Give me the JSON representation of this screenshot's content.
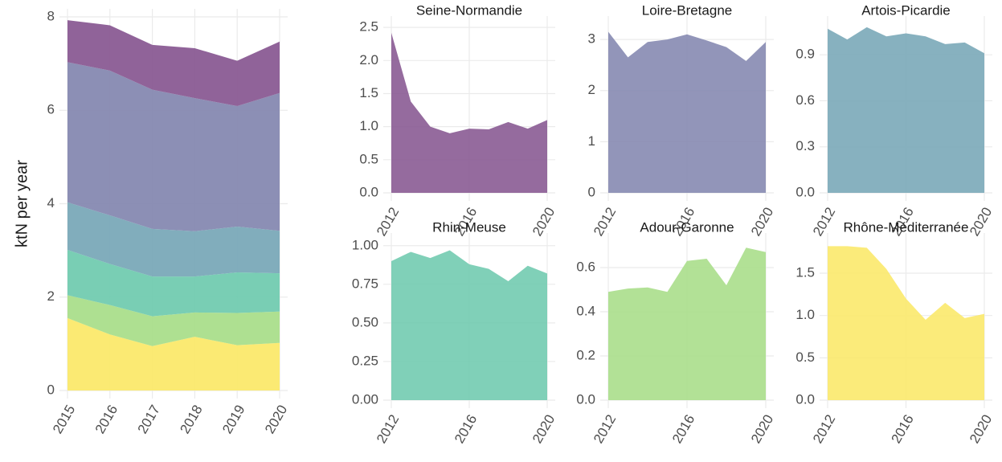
{
  "chart_data": [
    {
      "type": "stacked_area",
      "ylabel": "ktN per year",
      "x": [
        2015,
        2016,
        2017,
        2018,
        2019,
        2020
      ],
      "xlim": [
        2015,
        2020
      ],
      "xticks": [
        2015,
        2016,
        2017,
        2018,
        2019,
        2020
      ],
      "ylim": [
        0,
        8
      ],
      "yticks": [
        0,
        2,
        4,
        6,
        8
      ],
      "grid": true,
      "series": [
        {
          "color": "#fbe96c",
          "values": [
            1.55,
            1.2,
            0.95,
            1.15,
            0.97,
            1.02
          ]
        },
        {
          "color": "#aade8b",
          "values": [
            0.49,
            0.63,
            0.64,
            0.52,
            0.69,
            0.67
          ]
        },
        {
          "color": "#72cbb0",
          "values": [
            0.97,
            0.88,
            0.85,
            0.77,
            0.87,
            0.82
          ]
        },
        {
          "color": "#7aa9b8",
          "values": [
            1.02,
            1.04,
            1.02,
            0.97,
            0.98,
            0.91
          ]
        },
        {
          "color": "#8689b1",
          "values": [
            3.0,
            3.1,
            2.98,
            2.85,
            2.58,
            2.95
          ]
        },
        {
          "color": "#8a5b93",
          "values": [
            0.9,
            0.97,
            0.96,
            1.07,
            0.97,
            1.1
          ]
        }
      ]
    },
    {
      "type": "area",
      "title": "Seine-Normandie",
      "color": "#8a5b93",
      "x": [
        2012,
        2013,
        2014,
        2015,
        2016,
        2017,
        2018,
        2019,
        2020
      ],
      "values": [
        2.42,
        1.38,
        1.0,
        0.9,
        0.97,
        0.96,
        1.07,
        0.97,
        1.1
      ],
      "xlim": [
        2012,
        2020
      ],
      "xticks": [
        2012,
        2016,
        2020
      ],
      "ylim": [
        0,
        2.55
      ],
      "yticks": [
        {
          "value": 0,
          "label": "0.0"
        },
        0.5,
        {
          "value": 1,
          "label": "1.0"
        },
        1.5,
        {
          "value": 2,
          "label": "2.0"
        },
        2.5
      ],
      "grid": true
    },
    {
      "type": "area",
      "title": "Loire-Bretagne",
      "color": "#8689b1",
      "x": [
        2012,
        2013,
        2014,
        2015,
        2016,
        2017,
        2018,
        2019,
        2020
      ],
      "values": [
        3.15,
        2.65,
        2.95,
        3.0,
        3.1,
        2.98,
        2.85,
        2.58,
        2.95
      ],
      "xlim": [
        2012,
        2020
      ],
      "xticks": [
        2012,
        2016,
        2020
      ],
      "ylim": [
        0,
        3.3
      ],
      "yticks": [
        0,
        1,
        2,
        3
      ],
      "grid": true
    },
    {
      "type": "area",
      "title": "Artois-Picardie",
      "color": "#7aa9b8",
      "x": [
        2012,
        2013,
        2014,
        2015,
        2016,
        2017,
        2018,
        2019,
        2020
      ],
      "values": [
        1.07,
        1.0,
        1.08,
        1.02,
        1.04,
        1.02,
        0.97,
        0.98,
        0.91
      ],
      "xlim": [
        2012,
        2020
      ],
      "xticks": [
        2012,
        2016,
        2020
      ],
      "ylim": [
        0,
        1.1
      ],
      "yticks": [
        {
          "value": 0,
          "label": "0.0"
        },
        0.3,
        0.6,
        0.9
      ],
      "grid": true
    },
    {
      "type": "area",
      "title": "Rhin-Meuse",
      "color": "#72cbb0",
      "x": [
        2012,
        2013,
        2014,
        2015,
        2016,
        2017,
        2018,
        2019,
        2020
      ],
      "values": [
        0.9,
        0.96,
        0.92,
        0.97,
        0.88,
        0.85,
        0.77,
        0.87,
        0.82
      ],
      "xlim": [
        2012,
        2020
      ],
      "xticks": [
        2012,
        2016,
        2020
      ],
      "ylim": [
        0,
        1.03
      ],
      "yticks": [
        {
          "value": 0,
          "label": "0.00"
        },
        0.25,
        {
          "value": 0.5,
          "label": "0.50"
        },
        0.75,
        {
          "value": 1,
          "label": "1.00"
        }
      ],
      "grid": true
    },
    {
      "type": "area",
      "title": "Adour-Garonne",
      "color": "#aade8b",
      "x": [
        2012,
        2013,
        2014,
        2015,
        2016,
        2017,
        2018,
        2019,
        2020
      ],
      "values": [
        0.49,
        0.505,
        0.51,
        0.49,
        0.63,
        0.64,
        0.52,
        0.69,
        0.67
      ],
      "xlim": [
        2012,
        2020
      ],
      "xticks": [
        2012,
        2016,
        2020
      ],
      "ylim": [
        0,
        0.72
      ],
      "yticks": [
        {
          "value": 0,
          "label": "0.0"
        },
        0.2,
        0.4,
        0.6
      ],
      "grid": true
    },
    {
      "type": "area",
      "title": "Rhône-Méditerranée",
      "color": "#fbe96c",
      "x": [
        2012,
        2013,
        2014,
        2015,
        2016,
        2017,
        2018,
        2019,
        2020
      ],
      "values": [
        1.82,
        1.82,
        1.8,
        1.55,
        1.2,
        0.95,
        1.15,
        0.97,
        1.02
      ],
      "xlim": [
        2012,
        2020
      ],
      "xticks": [
        2012,
        2016,
        2020
      ],
      "ylim": [
        0,
        1.88
      ],
      "yticks": [
        {
          "value": 0,
          "label": "0.0"
        },
        0.5,
        {
          "value": 1,
          "label": "1.0"
        },
        1.5
      ],
      "grid": true
    }
  ]
}
